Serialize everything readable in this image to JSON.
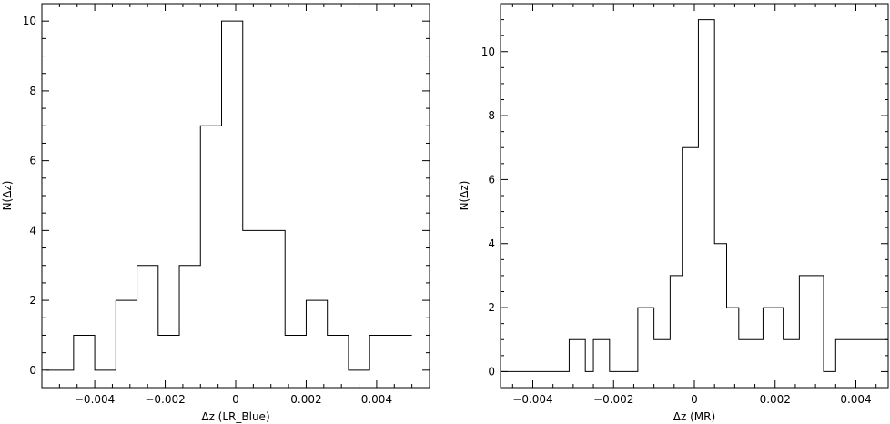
{
  "chart_data": [
    {
      "type": "bar",
      "title": "",
      "xlabel": "Δz (LR_Blue)",
      "ylabel": "N(Δz)",
      "xlim": [
        -0.0055,
        0.0055
      ],
      "ylim": [
        -0.5,
        10.5
      ],
      "xticks": [
        -0.004,
        -0.002,
        0,
        0.002,
        0.004
      ],
      "xtick_labels": [
        "−0.004",
        "−0.002",
        "0",
        "0.002",
        "0.004"
      ],
      "yticks": [
        0,
        2,
        4,
        6,
        8,
        10
      ],
      "ytick_labels": [
        "0",
        "2",
        "4",
        "6",
        "8",
        "10"
      ],
      "bin_edges": [
        -0.0054,
        -0.0046,
        -0.004,
        -0.0034,
        -0.0028,
        -0.0022,
        -0.0016,
        -0.001,
        -0.0004,
        0.0002,
        0.0008,
        0.0014,
        0.002,
        0.0026,
        0.0032,
        0.0038,
        0.0044,
        0.005
      ],
      "values": [
        0,
        1,
        0,
        2,
        3,
        1,
        3,
        7,
        10,
        4,
        4,
        1,
        2,
        1,
        0,
        1,
        1
      ],
      "grid": false
    },
    {
      "type": "bar",
      "title": "",
      "xlabel": "Δz (MR)",
      "ylabel": "N(Δz)",
      "xlim": [
        -0.0048,
        0.0048
      ],
      "ylim": [
        -0.5,
        11.5
      ],
      "xticks": [
        -0.004,
        -0.002,
        0,
        0.002,
        0.004
      ],
      "xtick_labels": [
        "−0.004",
        "−0.002",
        "0",
        "0.002",
        "0.004"
      ],
      "yticks": [
        0,
        2,
        4,
        6,
        8,
        10
      ],
      "ytick_labels": [
        "0",
        "2",
        "4",
        "6",
        "8",
        "10"
      ],
      "bin_edges": [
        -0.0048,
        -0.0031,
        -0.0027,
        -0.0025,
        -0.0021,
        -0.0014,
        -0.001,
        -0.0006,
        -0.0003,
        0.0001,
        0.0005,
        0.0008,
        0.0011,
        0.0017,
        0.0022,
        0.0026,
        0.0032,
        0.0035,
        0.0048
      ],
      "values": [
        0,
        1,
        0,
        1,
        0,
        2,
        1,
        3,
        7,
        11,
        4,
        2,
        1,
        2,
        1,
        3,
        0,
        1
      ],
      "grid": false
    }
  ]
}
